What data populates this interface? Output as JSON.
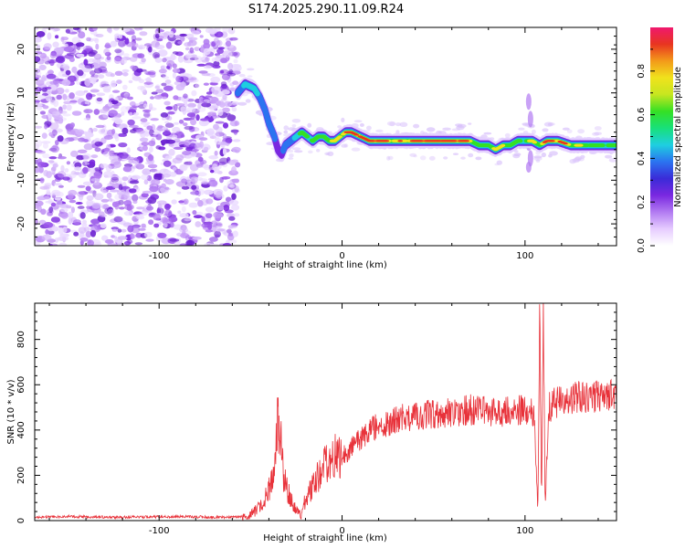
{
  "title": "S174.2025.290.11.09.R24",
  "colors": {
    "snr_line": "#e8323a",
    "axis": "#000000",
    "background": "#ffffff",
    "speckle": "#7a28e0"
  },
  "chart_data": [
    {
      "type": "heatmap",
      "panel": "spectrogram",
      "xlabel": "Height of straight line (km)",
      "ylabel": "Frequency (Hz)",
      "xlim": [
        -168,
        150
      ],
      "ylim": [
        -25,
        25
      ],
      "xticks": [
        -100,
        0,
        100
      ],
      "yticks": [
        20,
        10,
        0,
        -10,
        -20
      ],
      "colorbar": {
        "label": "Normalized spectral amplitude",
        "range": [
          0,
          1
        ],
        "ticks": [
          0.0,
          0.2,
          0.4,
          0.6,
          0.8
        ],
        "colormap": [
          "#ffffff",
          "#e6ccff",
          "#b27bf2",
          "#7a28e0",
          "#3a2bd8",
          "#2b73f0",
          "#1ecfe0",
          "#18e07a",
          "#35e024",
          "#c6e620",
          "#f0e21c",
          "#f39a1a",
          "#e83520",
          "#f0186e"
        ]
      },
      "noise_region_x": [
        -168,
        -57
      ],
      "ridge": {
        "x": [
          -57,
          -53,
          -48,
          -45,
          -42,
          -40,
          -37,
          -35,
          -33,
          -31,
          -28,
          -25,
          -22,
          -19,
          -16,
          -13,
          -10,
          -7,
          -4,
          -1,
          2,
          5,
          10,
          15,
          20,
          30,
          40,
          50,
          60,
          70,
          75,
          80,
          84,
          88,
          92,
          96,
          100,
          104,
          108,
          112,
          118,
          125,
          132,
          140,
          150
        ],
        "freq": [
          10,
          12,
          11,
          9,
          6,
          3,
          0,
          -3,
          -4,
          -2,
          -1,
          0,
          1,
          0,
          -1,
          0,
          0,
          -1,
          -1,
          0,
          1,
          1,
          0,
          -1,
          -1,
          -1,
          -1,
          -1,
          -1,
          -1,
          -2,
          -2,
          -3,
          -2,
          -2,
          -1,
          -1,
          -1,
          -2,
          -1,
          -1,
          -2,
          -2,
          -2,
          -2
        ],
        "amp": [
          0.3,
          0.5,
          0.45,
          0.4,
          0.3,
          0.25,
          0.3,
          0.2,
          0.2,
          0.3,
          0.4,
          0.45,
          0.5,
          0.6,
          0.55,
          0.6,
          0.65,
          0.6,
          0.7,
          0.75,
          0.8,
          0.85,
          0.9,
          0.9,
          0.85,
          0.7,
          0.8,
          0.95,
          0.95,
          0.7,
          0.6,
          0.6,
          0.7,
          0.7,
          0.6,
          0.6,
          0.5,
          0.7,
          0.6,
          0.85,
          0.8,
          0.7,
          0.6,
          0.6,
          0.5
        ]
      }
    },
    {
      "type": "line",
      "panel": "snr",
      "xlabel": "Height of straight line (km)",
      "ylabel": "SNR (10 * v/v)",
      "xlim": [
        -168,
        150
      ],
      "ylim": [
        0,
        960
      ],
      "xticks": [
        -100,
        0,
        100
      ],
      "yticks": [
        0,
        200,
        400,
        600,
        800
      ],
      "series": [
        {
          "name": "SNR",
          "x": [
            -168,
            -150,
            -130,
            -110,
            -90,
            -70,
            -55,
            -50,
            -45,
            -40,
            -37,
            -35,
            -32,
            -30,
            -28,
            -26,
            -24,
            -22,
            -20,
            -17,
            -14,
            -10,
            -5,
            0,
            5,
            10,
            15,
            20,
            25,
            30,
            40,
            50,
            60,
            70,
            80,
            90,
            100,
            105,
            107,
            108,
            109,
            110,
            111,
            113,
            118,
            125,
            135,
            145,
            150
          ],
          "y": [
            15,
            18,
            15,
            16,
            18,
            15,
            15,
            25,
            60,
            130,
            260,
            480,
            210,
            140,
            90,
            60,
            35,
            20,
            100,
            130,
            180,
            250,
            300,
            280,
            320,
            360,
            400,
            420,
            430,
            450,
            460,
            470,
            480,
            490,
            480,
            480,
            490,
            470,
            40,
            950,
            80,
            940,
            70,
            500,
            530,
            540,
            550,
            560,
            570
          ]
        }
      ]
    }
  ]
}
